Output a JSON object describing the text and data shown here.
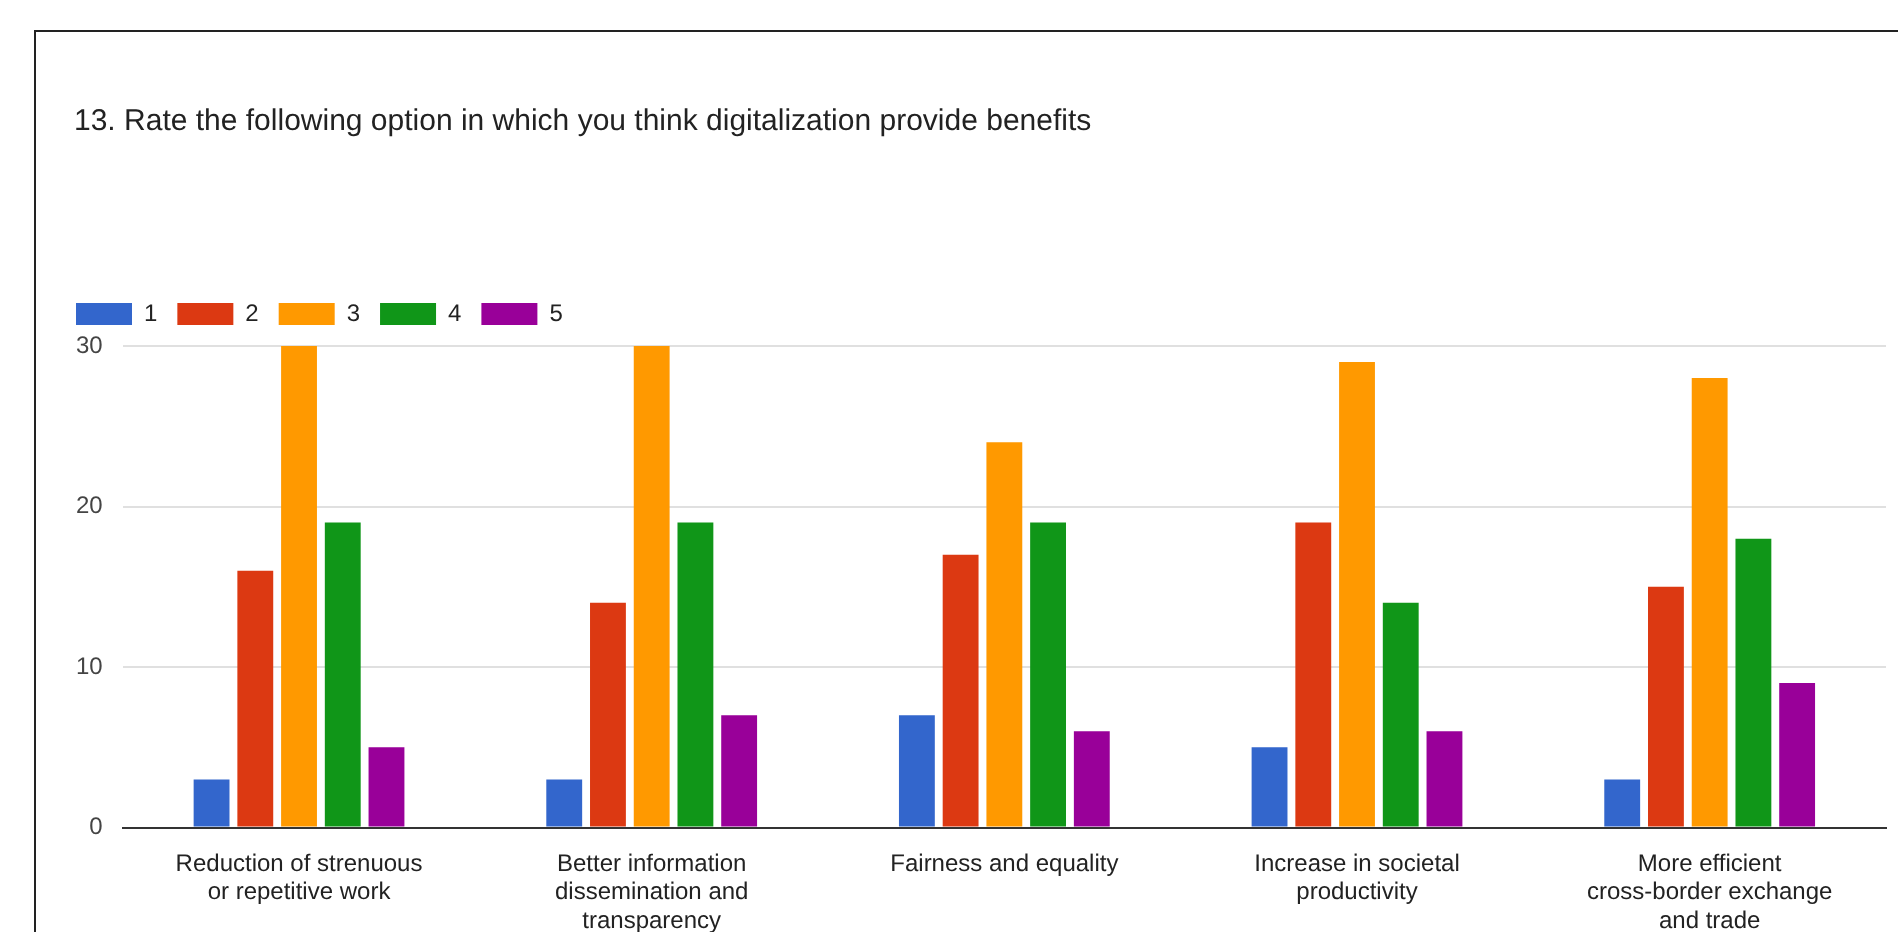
{
  "chart_data": {
    "type": "bar",
    "title": "13. Rate the following option in which you think digitalization provide benefits",
    "categories": [
      "Reduction of strenuous or repetitive work",
      "Better information dissemination and transparency",
      "Fairness and equality",
      "Increase in societal productivity",
      "More efficient cross-border exchange and trade"
    ],
    "series": [
      {
        "name": "1",
        "color": "#3366cc",
        "values": [
          3,
          3,
          7,
          5,
          3
        ]
      },
      {
        "name": "2",
        "color": "#dc3912",
        "values": [
          16,
          14,
          17,
          19,
          15
        ]
      },
      {
        "name": "3",
        "color": "#ff9900",
        "values": [
          30,
          30,
          24,
          29,
          28
        ]
      },
      {
        "name": "4",
        "color": "#109618",
        "values": [
          19,
          19,
          19,
          14,
          18
        ]
      },
      {
        "name": "5",
        "color": "#990099",
        "values": [
          5,
          7,
          6,
          6,
          9
        ]
      }
    ],
    "ylim": [
      0,
      30
    ],
    "yticks": [
      0,
      10,
      20,
      30
    ],
    "grid": "y",
    "legend": "top left"
  }
}
